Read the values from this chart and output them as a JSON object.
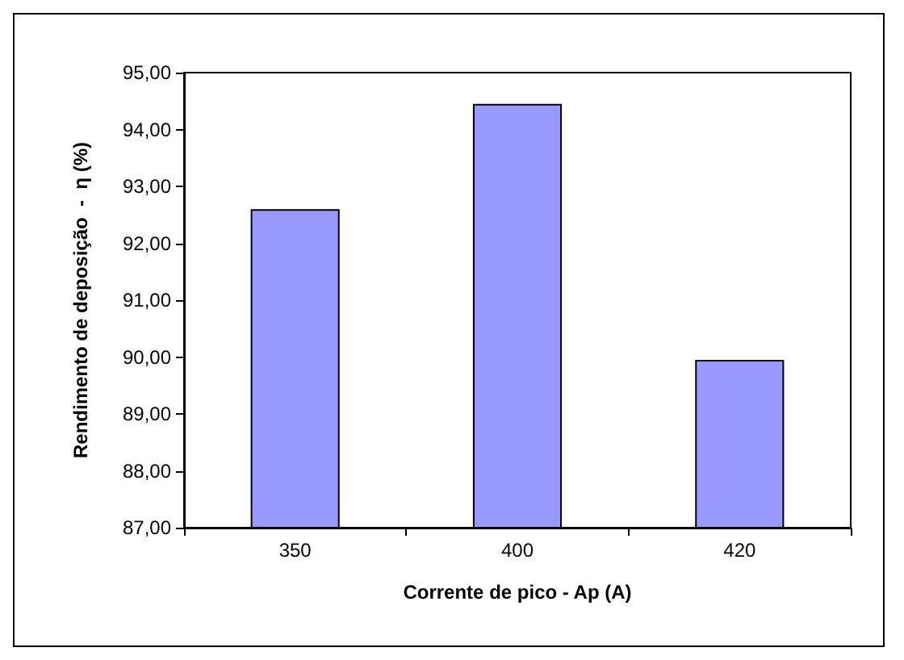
{
  "chart_data": {
    "type": "bar",
    "xlabel": "Corrente de pico - Ap (A)",
    "ylabel": "Rendimento de deposição  -  η (%)",
    "categories": [
      "350",
      "400",
      "420"
    ],
    "values": [
      92.6,
      94.45,
      89.95
    ],
    "color": "#9999ff",
    "ylim": [
      87,
      95
    ],
    "yticks": [
      {
        "value": 87,
        "label": "87,00"
      },
      {
        "value": 88,
        "label": "88,00"
      },
      {
        "value": 89,
        "label": "89,00"
      },
      {
        "value": 90,
        "label": "90,00"
      },
      {
        "value": 91,
        "label": "91,00"
      },
      {
        "value": 92,
        "label": "92,00"
      },
      {
        "value": 93,
        "label": "93,00"
      },
      {
        "value": 94,
        "label": "94,00"
      },
      {
        "value": 95,
        "label": "95,00"
      }
    ],
    "grid": false
  }
}
